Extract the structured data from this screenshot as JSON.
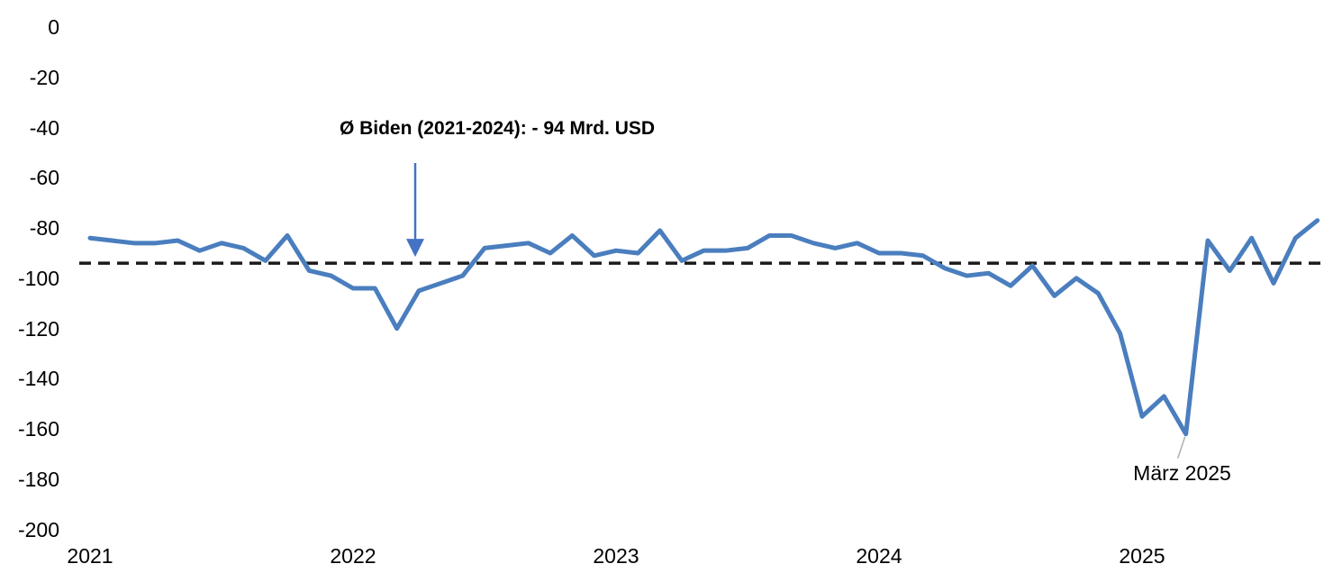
{
  "chart_data": {
    "type": "line",
    "unit": "Mrd. USD",
    "frequency": "monthly",
    "start_month": "2021-01",
    "end_month": "2025-09",
    "series": [
      {
        "values": [
          -84,
          -85,
          -86,
          -86,
          -85,
          -89,
          -86,
          -88,
          -93,
          -83,
          -97,
          -99,
          -104,
          -104,
          -120,
          -105,
          -102,
          -99,
          -88,
          -87,
          -86,
          -90,
          -83,
          -91,
          -89,
          -90,
          -81,
          -93,
          -89,
          -89,
          -88,
          -83,
          -83,
          -86,
          -88,
          -86,
          -90,
          -90,
          -91,
          -96,
          -99,
          -98,
          -103,
          -95,
          -107,
          -100,
          -106,
          -122,
          -155,
          -147,
          -162,
          -85,
          -97,
          -84,
          -102,
          -84,
          -77
        ]
      }
    ],
    "x_tick_labels": [
      "2021",
      "2022",
      "2023",
      "2024",
      "2025"
    ],
    "y_tick_labels": [
      "0",
      "-20",
      "-40",
      "-60",
      "-80",
      "-100",
      "-120",
      "-140",
      "-160",
      "-180",
      "-200"
    ],
    "ylim": [
      -200,
      0
    ],
    "grid": false,
    "legend": "none",
    "average_line": {
      "value": -94,
      "style": "dashed"
    },
    "annotations": {
      "biden_avg": {
        "text": "Ø Biden (2021-2024): - 94 Mrd. USD",
        "arrow_points_to_value": -94
      },
      "march_2025": {
        "text": "März 2025",
        "points_to_month": "2025-03"
      }
    },
    "colors": {
      "line": "#4A7EBE",
      "average_line": "#1A1A1A",
      "arrow": "#4472C4",
      "leader_line": "#AEAEAE"
    }
  }
}
